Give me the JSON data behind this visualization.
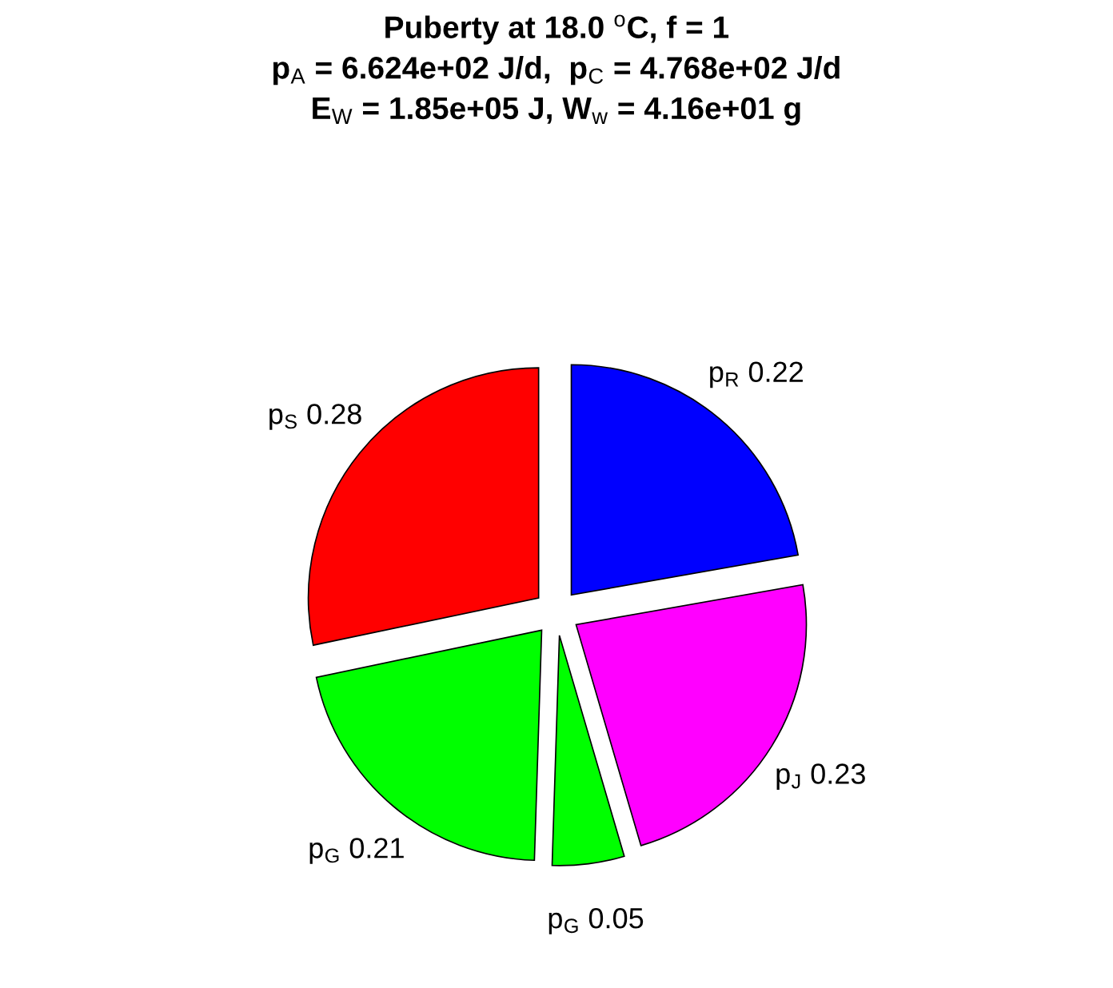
{
  "chart_data": {
    "type": "pie",
    "title": "Puberty at 18.0 $^{o}$C, f = 1\np$_{A}$ = 6.624e+02 J/d,  p$_{C}$ = 4.768e+02 J/d\nE$_{W}$ = 1.85e+05 J, W$_{w}$ = 4.16e+01 g",
    "categories": [
      "p$_{R}$",
      "p$_{J}$",
      "p$_{G}$",
      "p$_{G}$",
      "p$_{S}$"
    ],
    "values": [
      0.22,
      0.23,
      0.05,
      0.21,
      0.28
    ],
    "colors": [
      "#0000ff",
      "#ff00ff",
      "#00ff00",
      "#00ff00",
      "#ff0000"
    ],
    "data_labels": true
  }
}
